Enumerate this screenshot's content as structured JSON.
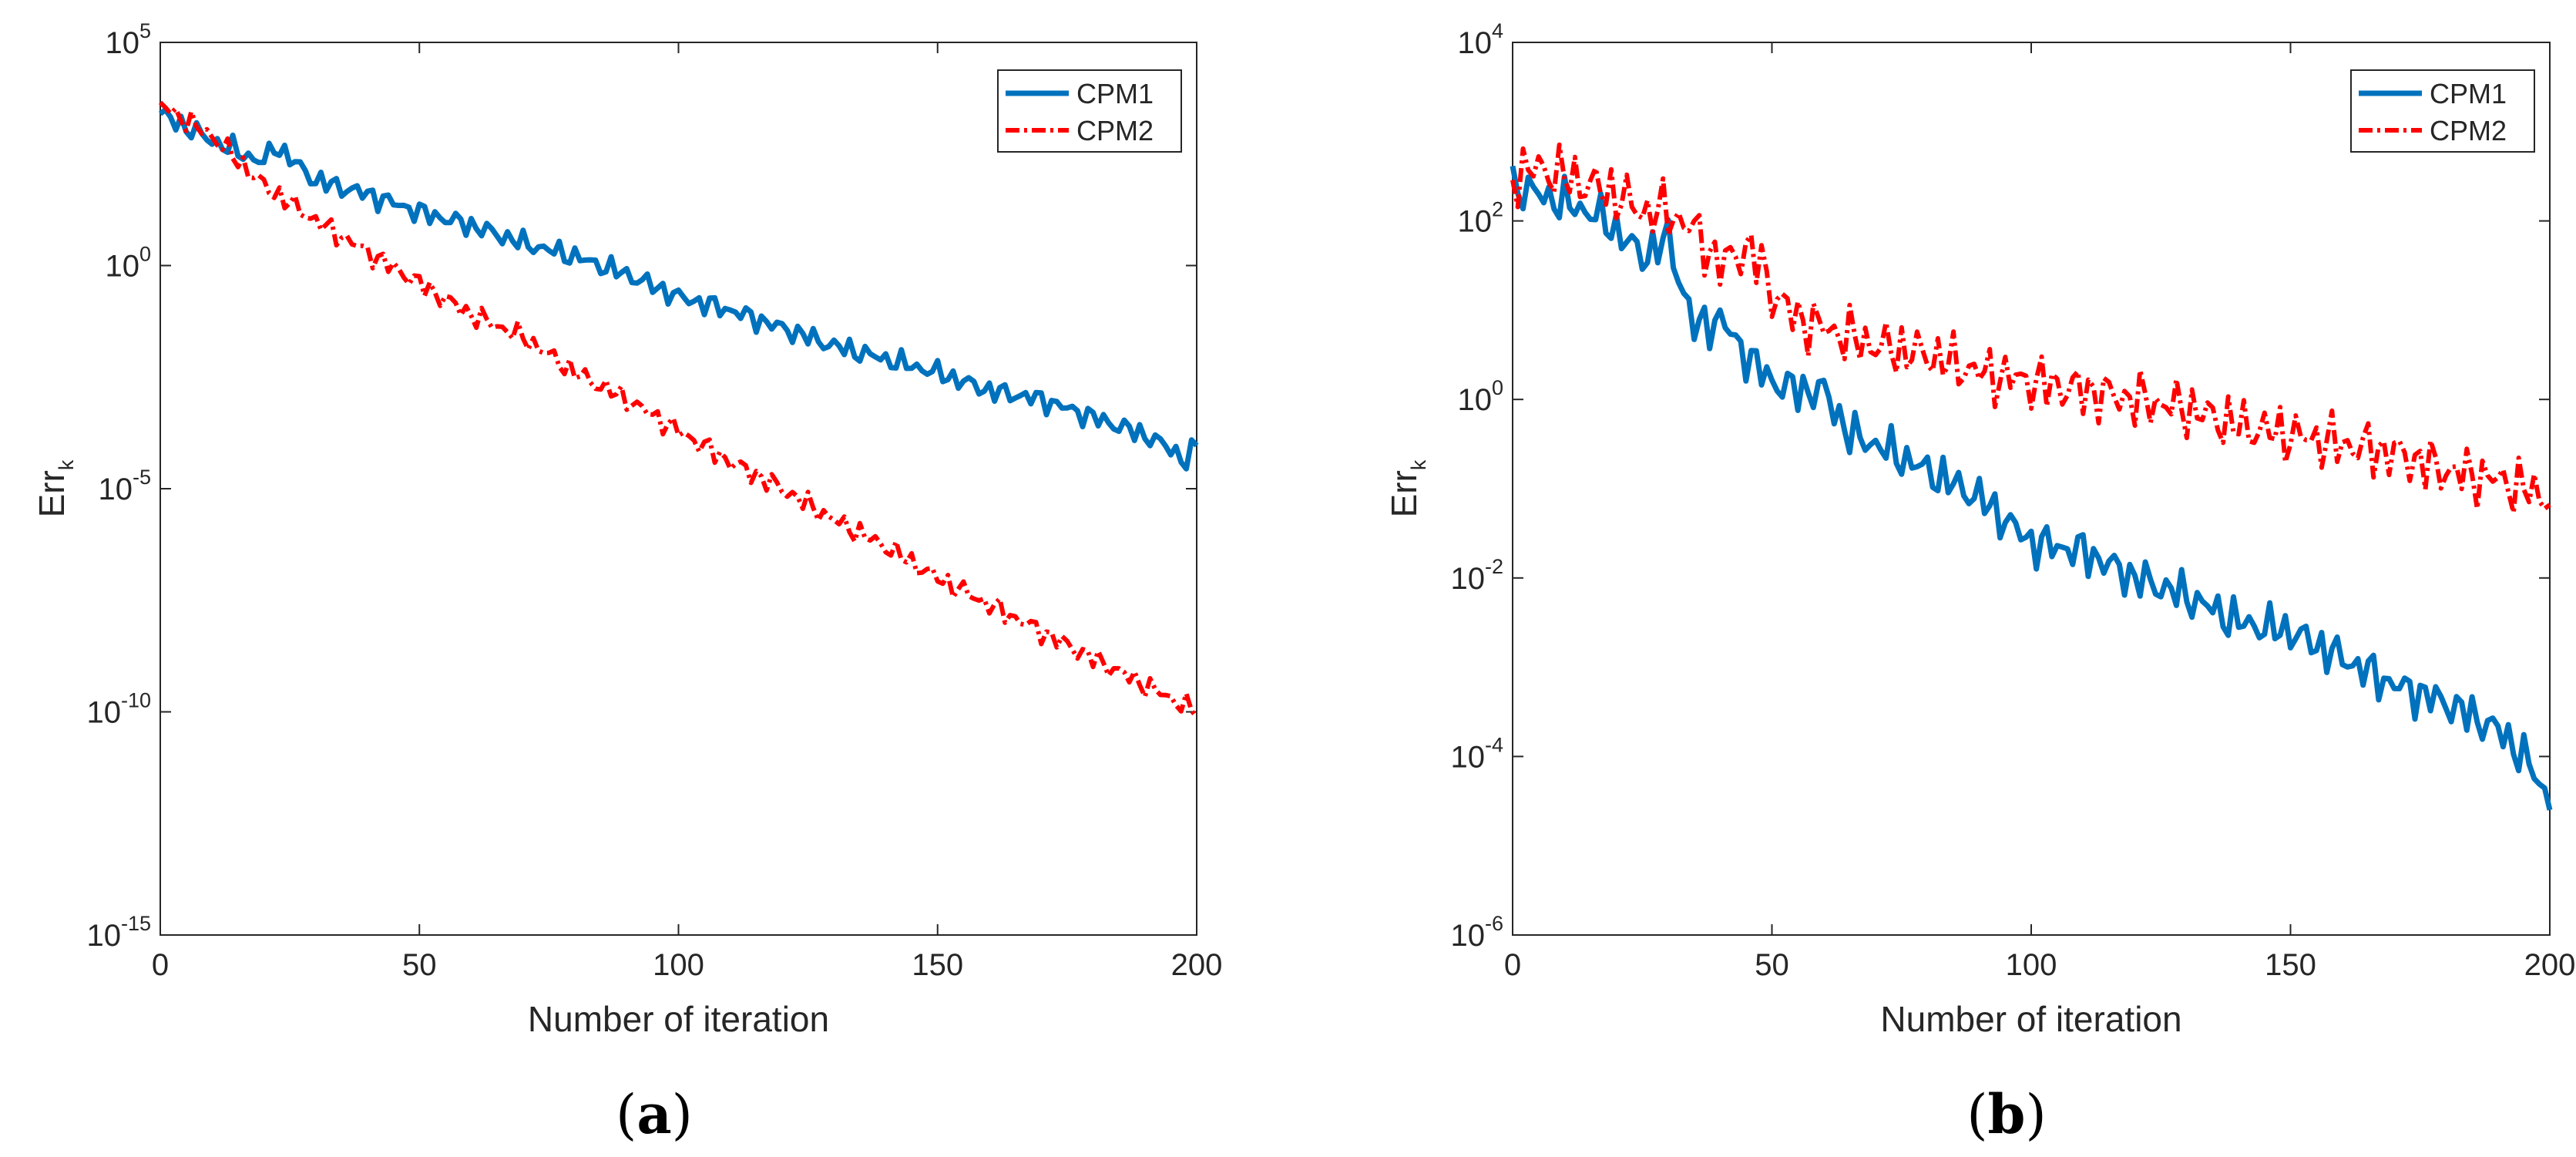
{
  "colors": {
    "cpm1": "#0072BD",
    "cpm2": "#FF0000",
    "axis": "#262626"
  },
  "chart_data": [
    {
      "type": "line",
      "panel_label": "(a)",
      "panel_letter": "a",
      "title": "",
      "xlabel": "Number of iteration",
      "ylabel": "Err",
      "ylabel_sub": "k",
      "yscale": "log",
      "xlim": [
        0,
        200
      ],
      "ylim_exp": [
        -15,
        5
      ],
      "x_ticks": [
        "0",
        "50",
        "100",
        "150",
        "200"
      ],
      "y_ticks": [
        {
          "base": "10",
          "exp": "-15",
          "e": -15
        },
        {
          "base": "10",
          "exp": "-10",
          "e": -10
        },
        {
          "base": "10",
          "exp": "-5",
          "e": -5
        },
        {
          "base": "10",
          "exp": "0",
          "e": 0
        },
        {
          "base": "10",
          "exp": "5",
          "e": 5
        }
      ],
      "legend": [
        "CPM1",
        "CPM2"
      ],
      "legend_position": "top-right",
      "series": [
        {
          "name": "CPM1",
          "x": [
            0,
            10,
            20,
            22,
            30,
            40,
            50,
            60,
            70,
            80,
            90,
            100,
            110,
            120,
            130,
            140,
            150,
            160,
            170,
            180,
            190,
            195,
            198,
            200
          ],
          "log10_err": [
            3.4,
            2.8,
            2.3,
            2.7,
            1.9,
            1.6,
            1.2,
            0.9,
            0.5,
            0.2,
            -0.2,
            -0.7,
            -1.0,
            -1.4,
            -1.8,
            -2.1,
            -2.4,
            -2.8,
            -3.0,
            -3.4,
            -3.8,
            -4.1,
            -4.4,
            -4.0
          ]
        },
        {
          "name": "CPM2",
          "x": [
            0,
            10,
            20,
            30,
            40,
            50,
            60,
            70,
            80,
            90,
            100,
            110,
            120,
            130,
            140,
            150,
            160,
            170,
            180,
            190,
            200
          ],
          "log10_err": [
            3.6,
            2.9,
            1.8,
            1.0,
            0.3,
            -0.4,
            -1.1,
            -1.6,
            -2.4,
            -3.0,
            -3.7,
            -4.4,
            -5.0,
            -5.7,
            -6.3,
            -7.0,
            -7.6,
            -8.2,
            -8.8,
            -9.4,
            -10.0
          ]
        }
      ]
    },
    {
      "type": "line",
      "panel_label": "(b)",
      "panel_letter": "b",
      "title": "",
      "xlabel": "Number of iteration",
      "ylabel": "Err",
      "ylabel_sub": "k",
      "yscale": "log",
      "xlim": [
        0,
        200
      ],
      "ylim_exp": [
        -6,
        4
      ],
      "x_ticks": [
        "0",
        "50",
        "100",
        "150",
        "200"
      ],
      "y_ticks": [
        {
          "base": "10",
          "exp": "-6",
          "e": -6
        },
        {
          "base": "10",
          "exp": "-4",
          "e": -4
        },
        {
          "base": "10",
          "exp": "-2",
          "e": -2
        },
        {
          "base": "10",
          "exp": "0",
          "e": 0
        },
        {
          "base": "10",
          "exp": "2",
          "e": 2
        },
        {
          "base": "10",
          "exp": "4",
          "e": 4
        }
      ],
      "legend": [
        "CPM1",
        "CPM2"
      ],
      "legend_position": "top-right",
      "series": [
        {
          "name": "CPM1",
          "x": [
            0,
            5,
            10,
            15,
            20,
            25,
            30,
            35,
            40,
            45,
            50,
            55,
            60,
            65,
            70,
            80,
            90,
            100,
            110,
            120,
            130,
            140,
            150,
            160,
            170,
            180,
            190,
            195,
            198,
            200
          ],
          "log10_err": [
            2.4,
            2.3,
            2.2,
            2.1,
            1.9,
            1.6,
            1.8,
            0.8,
            0.9,
            0.5,
            0.2,
            0.1,
            0.1,
            -0.4,
            -0.5,
            -0.8,
            -1.1,
            -1.6,
            -1.7,
            -2.0,
            -2.2,
            -2.5,
            -2.6,
            -2.9,
            -3.2,
            -3.4,
            -3.7,
            -4.0,
            -4.3,
            -4.5
          ]
        },
        {
          "name": "CPM2",
          "x": [
            0,
            5,
            10,
            15,
            20,
            25,
            30,
            35,
            40,
            45,
            48,
            50,
            55,
            60,
            70,
            80,
            90,
            100,
            110,
            120,
            130,
            140,
            150,
            160,
            170,
            180,
            190,
            200
          ],
          "log10_err": [
            2.5,
            2.6,
            2.5,
            2.4,
            2.3,
            2.1,
            2.1,
            1.9,
            1.5,
            1.7,
            1.5,
            1.2,
            0.9,
            0.8,
            0.6,
            0.5,
            0.3,
            0.2,
            0.1,
            0.0,
            -0.1,
            -0.3,
            -0.4,
            -0.5,
            -0.6,
            -0.8,
            -0.9,
            -1.1
          ]
        }
      ]
    }
  ]
}
